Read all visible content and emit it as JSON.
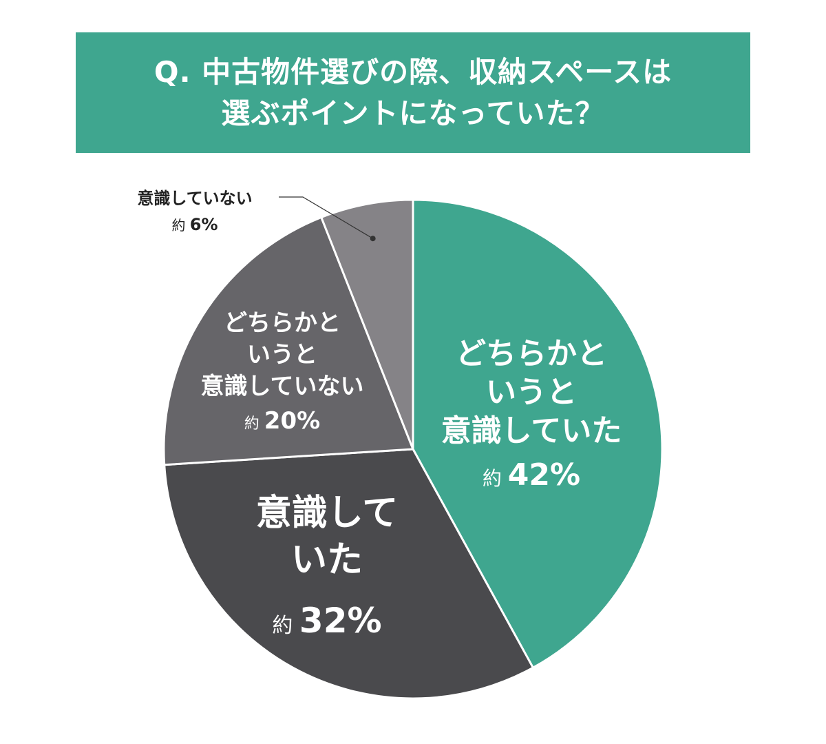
{
  "title": {
    "line1": "Q. 中古物件選びの際、収納スペースは",
    "line2": "選ぶポイントになっていた？"
  },
  "chart_data": {
    "type": "pie",
    "slices": [
      {
        "label_lines": [
          "どちらかと",
          "いうと",
          "意識していた"
        ],
        "prefix": "約",
        "value": 42,
        "value_text": "42%",
        "color": "#3fa68f"
      },
      {
        "label_lines": [
          "意識して",
          "いた"
        ],
        "prefix": "約",
        "value": 32,
        "value_text": "32%",
        "color": "#4a4a4d"
      },
      {
        "label_lines": [
          "どちらかと",
          "いうと",
          "意識していない"
        ],
        "prefix": "約",
        "value": 20,
        "value_text": "20%",
        "color": "#666569"
      },
      {
        "label_lines": [
          "意識していない"
        ],
        "prefix": "約",
        "value": 6,
        "value_text": "6%",
        "color": "#858387"
      }
    ]
  }
}
